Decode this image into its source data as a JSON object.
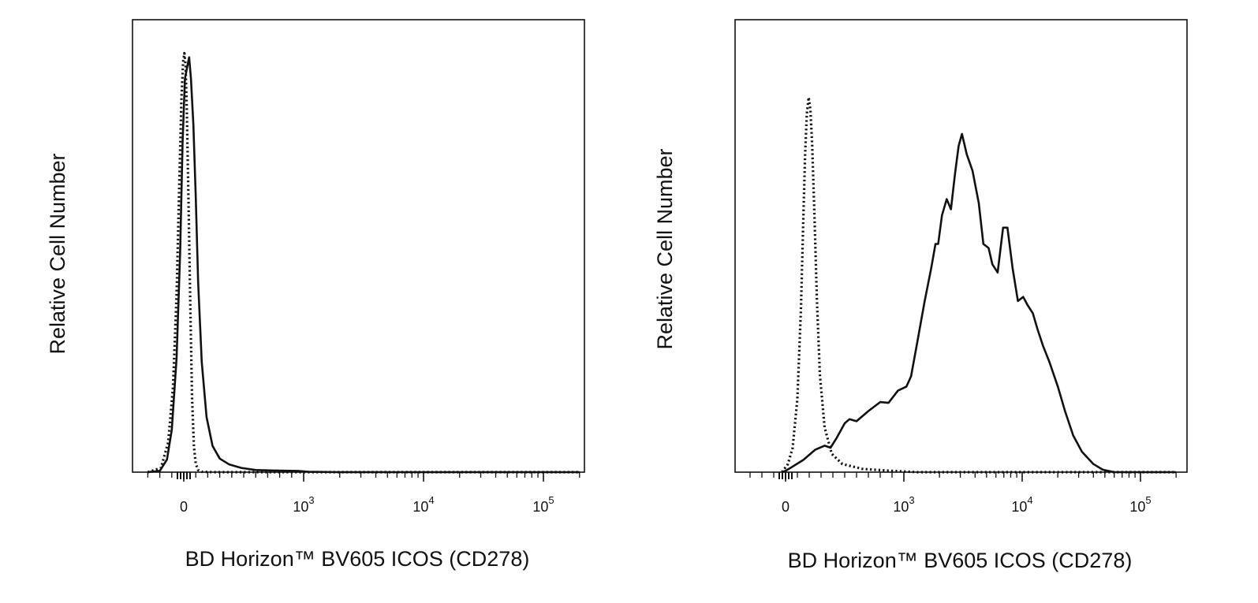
{
  "figure": {
    "panels": [
      "left",
      "right"
    ]
  },
  "chart_data": [
    {
      "type": "line",
      "panel": "left",
      "xlabel": "BD Horizon™ BV605 ICOS (CD278)",
      "ylabel": "Relative Cell Number",
      "x_scale": "biexponential",
      "x_ticks": [
        {
          "base": "0",
          "exp": ""
        },
        {
          "base": "10",
          "exp": "3"
        },
        {
          "base": "10",
          "exp": "4"
        },
        {
          "base": "10",
          "exp": "5"
        }
      ],
      "ylim": [
        0,
        1
      ],
      "grid": false,
      "series": [
        {
          "style": "solid",
          "color": "#111111",
          "points": [
            [
              -300,
              0
            ],
            [
              -200,
              0.003
            ],
            [
              -140,
              0.03
            ],
            [
              -100,
              0.1
            ],
            [
              -60,
              0.27
            ],
            [
              -30,
              0.52
            ],
            [
              -10,
              0.78
            ],
            [
              10,
              0.93
            ],
            [
              30,
              0.96
            ],
            [
              45,
              0.98
            ],
            [
              60,
              0.93
            ],
            [
              80,
              0.82
            ],
            [
              100,
              0.65
            ],
            [
              120,
              0.45
            ],
            [
              150,
              0.26
            ],
            [
              190,
              0.13
            ],
            [
              240,
              0.062
            ],
            [
              300,
              0.032
            ],
            [
              380,
              0.018
            ],
            [
              480,
              0.01
            ],
            [
              600,
              0.005
            ],
            [
              750,
              0.004
            ],
            [
              950,
              0.003
            ],
            [
              1100,
              0.001
            ],
            [
              2000,
              0.0
            ],
            [
              10000,
              0.0
            ],
            [
              200000,
              0.0
            ]
          ]
        },
        {
          "style": "dotted",
          "color": "#111111",
          "points": [
            [
              -300,
              0
            ],
            [
              -190,
              0.01
            ],
            [
              -130,
              0.07
            ],
            [
              -90,
              0.2
            ],
            [
              -60,
              0.42
            ],
            [
              -40,
              0.65
            ],
            [
              -20,
              0.88
            ],
            [
              -5,
              0.97
            ],
            [
              5,
              0.99
            ],
            [
              15,
              0.96
            ],
            [
              25,
              0.86
            ],
            [
              40,
              0.63
            ],
            [
              55,
              0.38
            ],
            [
              70,
              0.17
            ],
            [
              85,
              0.06
            ],
            [
              100,
              0.02
            ],
            [
              120,
              0.005
            ],
            [
              150,
              0.001
            ],
            [
              250,
              0.0
            ],
            [
              10000,
              0.0
            ],
            [
              200000,
              0.0
            ]
          ]
        }
      ]
    },
    {
      "type": "line",
      "panel": "right",
      "xlabel": "BD Horizon™ BV605 ICOS (CD278)",
      "ylabel": "Relative Cell Number",
      "x_scale": "biexponential",
      "x_ticks": [
        {
          "base": "0",
          "exp": ""
        },
        {
          "base": "10",
          "exp": "3"
        },
        {
          "base": "10",
          "exp": "4"
        },
        {
          "base": "10",
          "exp": "5"
        }
      ],
      "ylim": [
        0,
        1
      ],
      "grid": false,
      "series": [
        {
          "style": "solid",
          "color": "#111111",
          "points": [
            [
              -30,
              0
            ],
            [
              0,
              0.003
            ],
            [
              50,
              0.012
            ],
            [
              150,
              0.03
            ],
            [
              250,
              0.055
            ],
            [
              330,
              0.065
            ],
            [
              380,
              0.06
            ],
            [
              430,
              0.083
            ],
            [
              500,
              0.12
            ],
            [
              540,
              0.13
            ],
            [
              600,
              0.125
            ],
            [
              700,
              0.15
            ],
            [
              800,
              0.172
            ],
            [
              870,
              0.17
            ],
            [
              950,
              0.2
            ],
            [
              1050,
              0.21
            ],
            [
              1150,
              0.235
            ],
            [
              1300,
              0.32
            ],
            [
              1500,
              0.42
            ],
            [
              1700,
              0.5
            ],
            [
              1850,
              0.56
            ],
            [
              1950,
              0.56
            ],
            [
              2100,
              0.63
            ],
            [
              2300,
              0.67
            ],
            [
              2500,
              0.645
            ],
            [
              2700,
              0.73
            ],
            [
              2900,
              0.8
            ],
            [
              3100,
              0.83
            ],
            [
              3400,
              0.78
            ],
            [
              3800,
              0.74
            ],
            [
              4300,
              0.66
            ],
            [
              4700,
              0.56
            ],
            [
              5200,
              0.55
            ],
            [
              5600,
              0.51
            ],
            [
              6200,
              0.49
            ],
            [
              6900,
              0.6
            ],
            [
              7500,
              0.6
            ],
            [
              8300,
              0.5
            ],
            [
              9200,
              0.42
            ],
            [
              10200,
              0.43
            ],
            [
              11100,
              0.41
            ],
            [
              12300,
              0.39
            ],
            [
              13500,
              0.35
            ],
            [
              15000,
              0.31
            ],
            [
              17000,
              0.27
            ],
            [
              20000,
              0.21
            ],
            [
              23000,
              0.15
            ],
            [
              27000,
              0.09
            ],
            [
              32000,
              0.05
            ],
            [
              40000,
              0.02
            ],
            [
              48000,
              0.006
            ],
            [
              60000,
              0.0
            ],
            [
              200000,
              0.0
            ]
          ]
        },
        {
          "style": "dotted",
          "color": "#111111",
          "points": [
            [
              -30,
              0
            ],
            [
              20,
              0.02
            ],
            [
              60,
              0.06
            ],
            [
              100,
              0.18
            ],
            [
              130,
              0.4
            ],
            [
              150,
              0.62
            ],
            [
              165,
              0.78
            ],
            [
              180,
              0.88
            ],
            [
              195,
              0.92
            ],
            [
              210,
              0.89
            ],
            [
              225,
              0.8
            ],
            [
              245,
              0.62
            ],
            [
              265,
              0.42
            ],
            [
              290,
              0.24
            ],
            [
              330,
              0.11
            ],
            [
              390,
              0.045
            ],
            [
              480,
              0.02
            ],
            [
              650,
              0.008
            ],
            [
              900,
              0.003
            ],
            [
              1300,
              0.0
            ],
            [
              200000,
              0.0
            ]
          ]
        }
      ]
    }
  ]
}
